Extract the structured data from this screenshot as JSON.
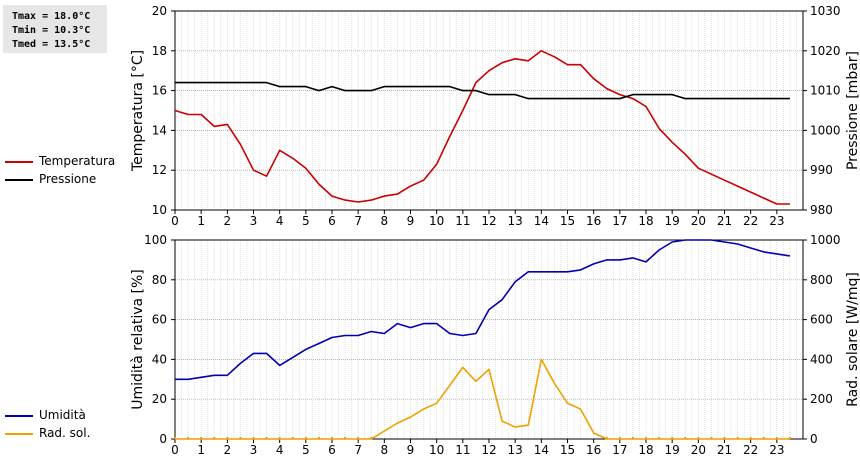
{
  "stats": {
    "tmax": "Tmax = 18.0°C",
    "tmin": "Tmin = 10.3°C",
    "tmed": "Tmed = 13.5°C"
  },
  "colors": {
    "temperature": "#cc0000",
    "pressure": "#000000",
    "humidity": "#0000b4",
    "radiation": "#f0a000",
    "grid": "#cfcfcf"
  },
  "chart_data": [
    {
      "type": "line",
      "xlim": [
        0,
        24
      ],
      "xticks": [
        "0",
        "1",
        "2",
        "3",
        "4",
        "5",
        "6",
        "7",
        "8",
        "9",
        "10",
        "11",
        "12",
        "13",
        "14",
        "15",
        "16",
        "17",
        "18",
        "19",
        "20",
        "21",
        "22",
        "23"
      ],
      "ylabel": "Temperatura [°C]",
      "ylim": [
        10,
        20
      ],
      "yticks": [
        "10",
        "12",
        "14",
        "16",
        "18",
        "20"
      ],
      "y2label": "Pressione [mbar]",
      "y2lim": [
        980,
        1030
      ],
      "y2ticks": [
        "980",
        "990",
        "1000",
        "1010",
        "1020",
        "1030"
      ],
      "grid": true,
      "legend_position": "left",
      "series": [
        {
          "name": "Temperatura",
          "axis": "left",
          "x": [
            0,
            0.25,
            0.5,
            1,
            1.5,
            2,
            2.5,
            3,
            3.5,
            4,
            4.5,
            5,
            5.5,
            6,
            6.5,
            7,
            7.5,
            8,
            8.5,
            9,
            9.5,
            10,
            10.5,
            11,
            11.5,
            12,
            12.5,
            13,
            13.5,
            14,
            14.5,
            15,
            15.5,
            16,
            16.5,
            17,
            17.5,
            18,
            18.5,
            19,
            19.5,
            20,
            20.5,
            21,
            21.5,
            22,
            22.5,
            23,
            23.5
          ],
          "values": [
            15.0,
            14.9,
            14.8,
            14.8,
            14.2,
            14.3,
            13.3,
            12.0,
            11.7,
            13.0,
            12.6,
            12.1,
            11.3,
            10.7,
            10.5,
            10.4,
            10.5,
            10.7,
            10.8,
            11.2,
            11.5,
            12.3,
            13.7,
            15.0,
            16.4,
            17.0,
            17.4,
            17.6,
            17.5,
            18.0,
            17.7,
            17.3,
            17.3,
            16.6,
            16.1,
            15.8,
            15.6,
            15.2,
            14.1,
            13.4,
            12.8,
            12.1,
            11.8,
            11.5,
            11.2,
            10.9,
            10.6,
            10.3,
            10.3
          ]
        },
        {
          "name": "Pressione",
          "axis": "right",
          "x": [
            0,
            1,
            2,
            3,
            3.5,
            4,
            4.5,
            5,
            5.5,
            6,
            6.5,
            7,
            7.5,
            8,
            8.5,
            9,
            9.5,
            10,
            10.5,
            11,
            11.5,
            12,
            12.5,
            13,
            13.5,
            14,
            15,
            16,
            17,
            17.5,
            18,
            18.5,
            19,
            19.5,
            20,
            21,
            22,
            23,
            23.5
          ],
          "values": [
            1012,
            1012,
            1012,
            1012,
            1012,
            1011,
            1011,
            1011,
            1010,
            1011,
            1010,
            1010,
            1010,
            1011,
            1011,
            1011,
            1011,
            1011,
            1011,
            1010,
            1010,
            1009,
            1009,
            1009,
            1008,
            1008,
            1008,
            1008,
            1008,
            1009,
            1009,
            1009,
            1009,
            1008,
            1008,
            1008,
            1008,
            1008,
            1008
          ]
        }
      ]
    },
    {
      "type": "line",
      "xlim": [
        0,
        24
      ],
      "xticks": [
        "0",
        "1",
        "2",
        "3",
        "4",
        "5",
        "6",
        "7",
        "8",
        "9",
        "10",
        "11",
        "12",
        "13",
        "14",
        "15",
        "16",
        "17",
        "18",
        "19",
        "20",
        "21",
        "22",
        "23"
      ],
      "ylabel": "Umidità relativa [%]",
      "ylim": [
        0,
        100
      ],
      "yticks": [
        "0",
        "20",
        "40",
        "60",
        "80",
        "100"
      ],
      "y2label": "Rad. solare [W/mq]",
      "y2lim": [
        0,
        1000
      ],
      "y2ticks": [
        "0",
        "200",
        "400",
        "600",
        "800",
        "1000"
      ],
      "grid": true,
      "legend_position": "left",
      "series": [
        {
          "name": "Umidità",
          "axis": "left",
          "x": [
            0,
            0.5,
            1,
            1.5,
            2,
            2.5,
            3,
            3.5,
            4,
            4.5,
            5,
            5.5,
            6,
            6.5,
            7,
            7.5,
            8,
            8.5,
            9,
            9.5,
            10,
            10.5,
            11,
            11.5,
            12,
            12.5,
            13,
            13.5,
            14,
            15,
            15.5,
            16,
            16.5,
            17,
            17.5,
            18,
            18.5,
            19,
            19.5,
            20,
            20.5,
            21,
            21.5,
            22,
            22.5,
            23,
            23.5
          ],
          "values": [
            30,
            30,
            31,
            32,
            32,
            38,
            43,
            43,
            37,
            41,
            45,
            48,
            51,
            52,
            52,
            54,
            53,
            58,
            56,
            58,
            58,
            53,
            52,
            53,
            65,
            70,
            79,
            84,
            84,
            84,
            85,
            88,
            90,
            90,
            91,
            89,
            95,
            99,
            100,
            100,
            100,
            99,
            98,
            96,
            94,
            93,
            92
          ]
        },
        {
          "name": "Rad. sol.",
          "axis": "right",
          "x": [
            0,
            0.5,
            1,
            1.5,
            2,
            2.5,
            3,
            3.5,
            4,
            4.5,
            5,
            5.5,
            6,
            6.5,
            7,
            7.5,
            8,
            8.5,
            9,
            9.5,
            10,
            10.5,
            11,
            11.5,
            12,
            12.5,
            13,
            13.5,
            14,
            14.5,
            15,
            15.5,
            16,
            16.5,
            17,
            17.5,
            18,
            18.5,
            19,
            19.5,
            20,
            20.5,
            21,
            21.5,
            22,
            22.5,
            23,
            23.5
          ],
          "values": [
            0,
            0,
            0,
            0,
            0,
            0,
            0,
            0,
            0,
            0,
            0,
            0,
            0,
            0,
            0,
            0,
            40,
            80,
            110,
            150,
            180,
            270,
            360,
            290,
            350,
            90,
            60,
            70,
            400,
            280,
            180,
            150,
            30,
            0,
            0,
            0,
            0,
            0,
            0,
            0,
            0,
            0,
            0,
            0,
            0,
            0,
            0,
            0
          ]
        }
      ]
    }
  ]
}
